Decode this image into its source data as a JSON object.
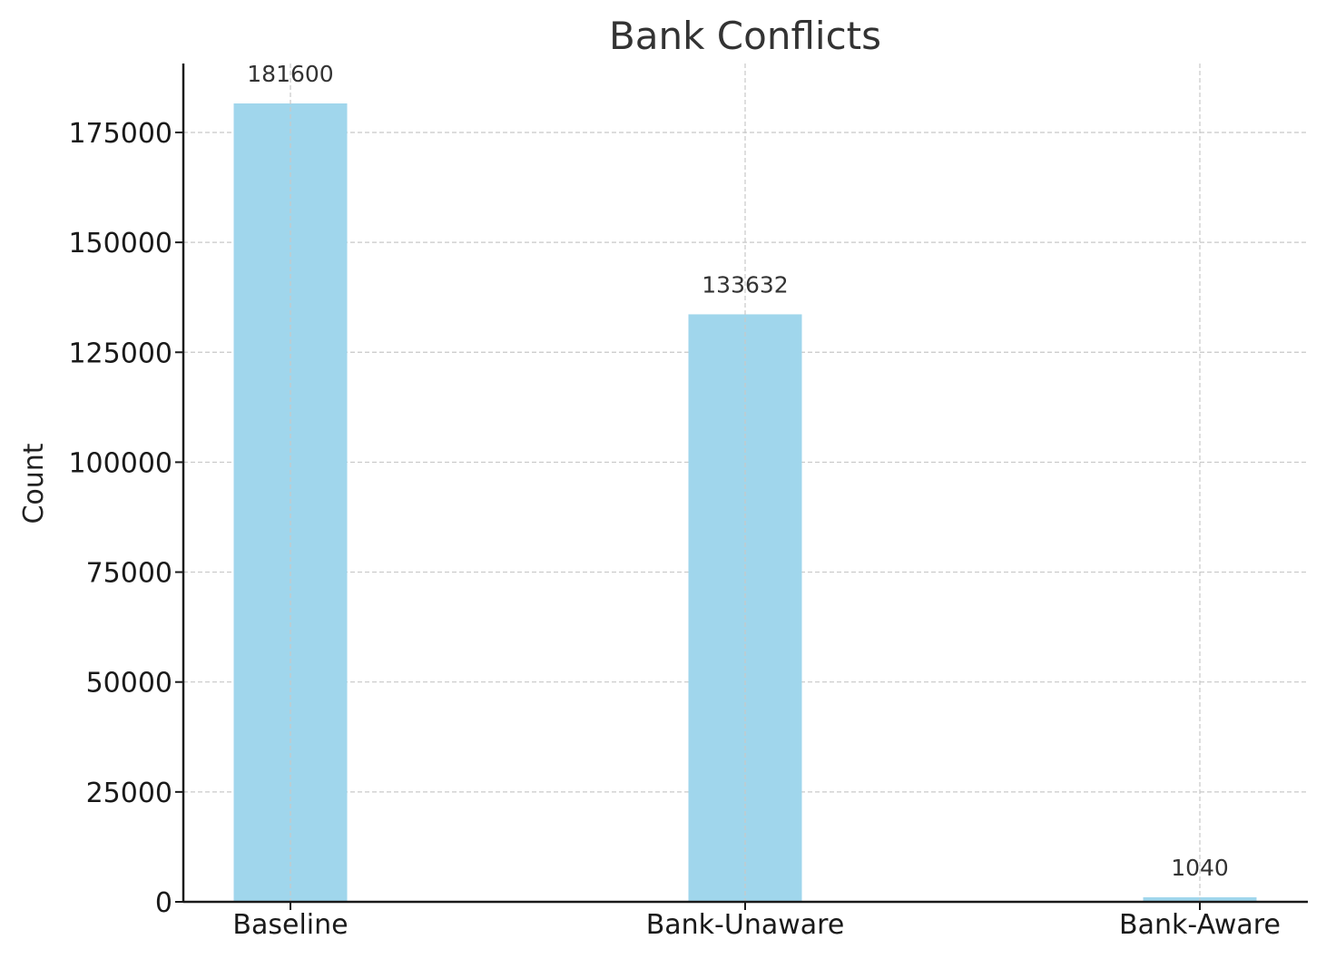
{
  "chart_data": {
    "type": "bar",
    "title": "Bank Conflicts",
    "xlabel": "",
    "ylabel": "Count",
    "categories": [
      "Baseline",
      "Bank-Unaware",
      "Bank-Aware"
    ],
    "values": [
      181600,
      133632,
      1040
    ],
    "data_labels": [
      "181600",
      "133632",
      "1040"
    ],
    "yticks": [
      0,
      25000,
      50000,
      75000,
      100000,
      125000,
      150000,
      175000
    ],
    "ytick_labels": [
      "0",
      "25000",
      "50000",
      "75000",
      "100000",
      "125000",
      "150000",
      "175000"
    ],
    "ylim": [
      0,
      190680
    ],
    "grid": true,
    "bar_color": "#a0d6ec"
  }
}
